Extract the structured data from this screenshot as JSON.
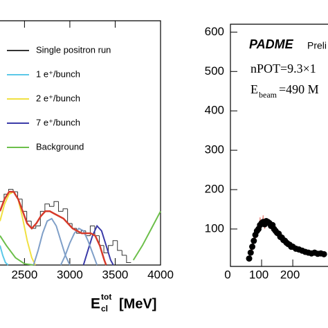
{
  "chart_data": [
    {
      "type": "line",
      "xlim": [
        2230,
        4000
      ],
      "xticks": [
        2500,
        3000,
        3500,
        4000
      ],
      "ylim": [
        0,
        100
      ],
      "xlabel": {
        "main": "E",
        "sup": "tot",
        "sub": "cl",
        "unit": "[MeV]"
      },
      "histogram": {
        "name": "Single positron run",
        "color": "#333333",
        "bins": [
          2225,
          2275,
          2325,
          2375,
          2425,
          2475,
          2525,
          2575,
          2625,
          2675,
          2725,
          2775,
          2825,
          2875,
          2925,
          2975,
          3025,
          3075,
          3125,
          3175,
          3225,
          3275,
          3325,
          3375,
          3425,
          3475,
          3525,
          3575,
          3625,
          3675
        ],
        "counts": [
          26,
          29,
          31,
          30,
          27,
          22,
          18,
          15,
          16,
          22,
          25,
          24,
          26,
          22,
          23,
          17,
          15,
          13,
          14,
          12,
          16,
          12,
          8,
          5,
          8,
          10,
          6,
          4,
          1
        ]
      },
      "series": [
        {
          "name": "1 e⁺/bunch",
          "color": "#5bc8e8",
          "x": [
            2230,
            2260,
            2290,
            2320
          ],
          "values": [
            8,
            4,
            1,
            0
          ]
        },
        {
          "name": "2 e⁺/bunch",
          "color": "#f0e040",
          "x": [
            2230,
            2280,
            2330,
            2380,
            2430,
            2480,
            2530,
            2580,
            2620
          ],
          "values": [
            18,
            25,
            29,
            30,
            27,
            19,
            10,
            3,
            0
          ]
        },
        {
          "name": "7 e⁺/bunch",
          "color": "#3a3aa8",
          "x": [
            3150,
            3200,
            3250,
            3300,
            3350,
            3400,
            3450,
            3480
          ],
          "values": [
            0,
            6,
            12,
            16,
            14,
            8,
            2,
            0
          ]
        },
        {
          "name": "Background",
          "color": "#6cbf4a",
          "x": [
            2230,
            2300,
            2400,
            2500,
            2600,
            3600,
            3700,
            3800,
            3900,
            4000
          ],
          "values": [
            12,
            8,
            3,
            0.5,
            0,
            null,
            2,
            8,
            15,
            22
          ]
        },
        {
          "color": "#7f9fc8",
          "x": [
            2600,
            2650,
            2700,
            2750,
            2800,
            2850,
            2900,
            2950,
            3000
          ],
          "values": [
            0,
            6,
            13,
            18,
            19,
            16,
            10,
            4,
            0
          ]
        },
        {
          "color": "#7f9fc8",
          "x": [
            2900,
            2950,
            3000,
            3050,
            3100,
            3150,
            3200,
            3250,
            3300
          ],
          "values": [
            0,
            4,
            9,
            13,
            15,
            14,
            10,
            5,
            0
          ]
        },
        {
          "color": "#d63a2a",
          "x": [
            2230,
            2280,
            2330,
            2380,
            2430,
            2480,
            2530,
            2580,
            2630,
            2680,
            2730,
            2780,
            2830,
            2880,
            2930,
            2980,
            3030,
            3080,
            3130,
            3180,
            3230,
            3280,
            3330,
            3380,
            3400
          ],
          "values": [
            22,
            27,
            30,
            30,
            27,
            22,
            17,
            15,
            17,
            20,
            22,
            22,
            21,
            20,
            19,
            17,
            15,
            14,
            13,
            13,
            13,
            12,
            8,
            2,
            0
          ]
        }
      ]
    },
    {
      "type": "scatter",
      "xlim": [
        0,
        313
      ],
      "xticks": [
        0,
        100,
        200
      ],
      "ylim": [
        5,
        620
      ],
      "yticks": [
        100,
        200,
        300,
        400,
        500,
        600
      ],
      "annotations": {
        "brand": "PADME",
        "brand_note": "Preli",
        "npot": "nPOT=9.3×1",
        "ebeam": "E",
        "ebeam_sub": "beam",
        "ebeam_value": "=490 M"
      },
      "x": [
        60,
        65,
        70,
        75,
        80,
        85,
        90,
        95,
        100,
        105,
        110,
        115,
        120,
        125,
        130,
        135,
        140,
        145,
        150,
        155,
        160,
        165,
        170,
        175,
        180,
        185,
        190,
        195,
        200,
        210,
        220,
        230,
        240,
        250,
        260,
        270,
        280,
        290,
        300
      ],
      "series": [
        {
          "color": "#e88a80",
          "values": [
            20,
            50,
            45,
            80,
            70,
            100,
            90,
            130,
            105,
            135,
            100,
            125,
            110,
            120,
            100,
            115,
            95,
            100,
            85,
            92,
            75,
            82,
            70,
            74,
            62,
            66,
            58,
            57,
            52,
            53,
            45,
            48,
            40,
            43,
            36,
            42,
            35,
            40,
            34
          ]
        },
        {
          "color": "#000000",
          "values": [
            25,
            40,
            55,
            70,
            85,
            95,
            100,
            110,
            115,
            118,
            112,
            120,
            118,
            115,
            108,
            110,
            100,
            95,
            90,
            88,
            80,
            78,
            72,
            70,
            65,
            62,
            60,
            55,
            55,
            50,
            48,
            45,
            42,
            40,
            38,
            40,
            37,
            38,
            36
          ]
        }
      ]
    }
  ]
}
